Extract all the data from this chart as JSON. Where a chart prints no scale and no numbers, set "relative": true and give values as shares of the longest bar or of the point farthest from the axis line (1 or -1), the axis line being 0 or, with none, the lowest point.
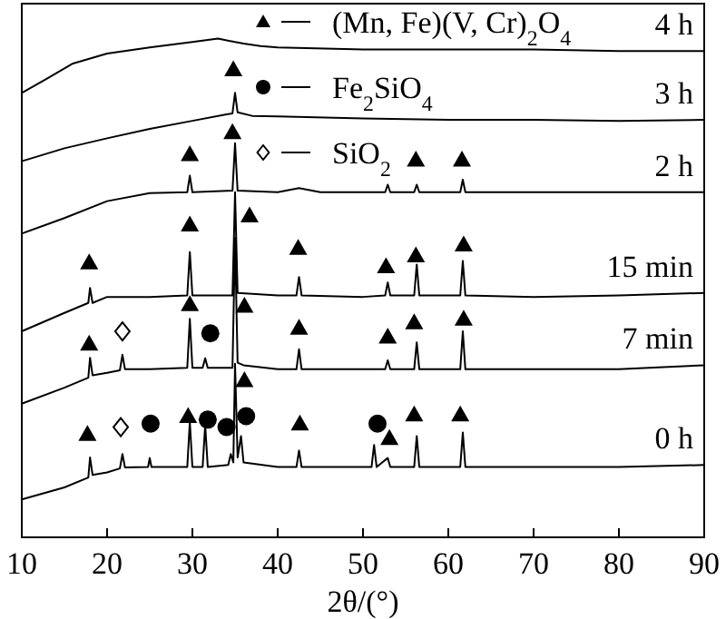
{
  "chart_data": {
    "type": "line",
    "relative": true,
    "xlabel": "2θ/(°)",
    "xlim": [
      10,
      90
    ],
    "xticks": [
      10,
      20,
      30,
      40,
      50,
      60,
      70,
      80,
      90
    ],
    "grid": false,
    "legend": "top",
    "line_style": "solid",
    "series": [
      {
        "name": "4 h",
        "color": "#000000",
        "x": [
          10,
          13,
          16,
          20,
          25,
          30,
          33,
          35,
          36,
          38,
          40,
          50,
          60,
          70,
          80,
          90
        ],
        "values": [
          0.891,
          0.92,
          0.95,
          0.97,
          0.982,
          0.993,
          1.0,
          0.993,
          0.99,
          0.985,
          0.982,
          0.978,
          0.978,
          0.978,
          0.975,
          0.975
        ]
      },
      {
        "name": "3 h",
        "color": "#000000",
        "x": [
          10,
          15,
          20,
          25,
          30,
          34,
          34.7,
          35,
          35.3,
          37,
          40,
          50,
          60,
          70,
          80,
          90
        ],
        "values": [
          0.754,
          0.78,
          0.8,
          0.819,
          0.835,
          0.848,
          0.85,
          0.891,
          0.852,
          0.845,
          0.844,
          0.84,
          0.837,
          0.837,
          0.835,
          0.837
        ]
      },
      {
        "name": "2 h",
        "color": "#000000",
        "x": [
          10,
          15,
          20,
          25,
          29.4,
          29.7,
          30,
          34.7,
          35,
          35.3,
          40,
          42.5,
          45,
          52.6,
          52.9,
          53.2,
          56,
          56.3,
          56.6,
          61.4,
          61.7,
          62,
          70,
          80,
          90
        ],
        "values": [
          0.609,
          0.64,
          0.674,
          0.69,
          0.692,
          0.725,
          0.692,
          0.695,
          0.79,
          0.695,
          0.692,
          0.7,
          0.692,
          0.692,
          0.707,
          0.692,
          0.692,
          0.707,
          0.692,
          0.692,
          0.717,
          0.692,
          0.692,
          0.692,
          0.692
        ]
      },
      {
        "name": "15 min",
        "color": "#000000",
        "x": [
          10,
          15,
          17.8,
          18,
          18.3,
          20,
          25,
          29.4,
          29.7,
          30,
          34.7,
          35,
          35.3,
          40,
          42.2,
          42.5,
          42.8,
          50,
          52.6,
          52.9,
          53.2,
          56,
          56.3,
          56.6,
          61.4,
          61.7,
          62,
          70,
          80,
          90
        ],
        "values": [
          0.413,
          0.45,
          0.47,
          0.5,
          0.47,
          0.482,
          0.482,
          0.485,
          0.572,
          0.485,
          0.485,
          0.692,
          0.49,
          0.485,
          0.485,
          0.522,
          0.485,
          0.482,
          0.485,
          0.511,
          0.485,
          0.485,
          0.547,
          0.485,
          0.485,
          0.554,
          0.485,
          0.482,
          0.485,
          0.49
        ]
      },
      {
        "name": "7 min",
        "color": "#000000",
        "x": [
          10,
          15,
          17.8,
          18,
          18.3,
          20,
          21.5,
          21.8,
          22.1,
          25,
          29.4,
          29.7,
          30,
          31.2,
          31.5,
          31.8,
          34.7,
          35,
          35.3,
          36,
          40,
          42.2,
          42.5,
          42.8,
          50,
          52.6,
          52.9,
          53.2,
          56,
          56.3,
          56.6,
          61.4,
          61.7,
          62,
          70,
          80,
          90
        ],
        "values": [
          0.268,
          0.3,
          0.32,
          0.36,
          0.325,
          0.33,
          0.335,
          0.366,
          0.337,
          0.337,
          0.34,
          0.438,
          0.34,
          0.34,
          0.359,
          0.34,
          0.34,
          0.6,
          0.35,
          0.345,
          0.337,
          0.337,
          0.377,
          0.337,
          0.337,
          0.337,
          0.355,
          0.337,
          0.337,
          0.391,
          0.337,
          0.337,
          0.413,
          0.337,
          0.337,
          0.337,
          0.345
        ]
      },
      {
        "name": "0 h",
        "color": "#000000",
        "x": [
          10,
          15,
          17.8,
          18,
          18.3,
          20,
          21.5,
          21.8,
          22.1,
          24.8,
          25,
          25.2,
          29.4,
          29.7,
          30,
          31.2,
          31.5,
          31.8,
          34.2,
          34.5,
          34.8,
          35,
          35.3,
          35.7,
          36,
          40,
          42.2,
          42.5,
          42.8,
          51,
          51.3,
          51.6,
          52.9,
          53.2,
          56,
          56.3,
          56.6,
          61.4,
          61.7,
          62,
          70,
          80,
          90
        ],
        "values": [
          0.076,
          0.1,
          0.12,
          0.16,
          0.125,
          0.13,
          0.138,
          0.167,
          0.14,
          0.141,
          0.159,
          0.141,
          0.141,
          0.232,
          0.141,
          0.141,
          0.225,
          0.141,
          0.145,
          0.167,
          0.15,
          0.348,
          0.16,
          0.203,
          0.15,
          0.141,
          0.141,
          0.174,
          0.141,
          0.141,
          0.185,
          0.141,
          0.159,
          0.141,
          0.141,
          0.203,
          0.141,
          0.141,
          0.21,
          0.141,
          0.141,
          0.141,
          0.145
        ]
      },
      {
        "type": "scatter",
        "marker": "triangle",
        "name": "(Mn, Fe)(V, Cr)$_{2}$O$_{4}$",
        "color": "#000000",
        "x": [
          34.8,
          29.7,
          34.7,
          56.2,
          61.6,
          29.7,
          36.7,
          17.9,
          42.4,
          52.7,
          56.2,
          61.8,
          29.7,
          36.1,
          17.9,
          42.5,
          52.9,
          56.0,
          61.8,
          17.7,
          29.5,
          36.1,
          42.6,
          53.1,
          56.0,
          61.4
        ],
        "values": [
          0.938,
          0.768,
          0.812,
          0.757,
          0.757,
          0.627,
          0.645,
          0.551,
          0.58,
          0.543,
          0.565,
          0.587,
          0.467,
          0.464,
          0.388,
          0.42,
          0.402,
          0.431,
          0.438,
          0.207,
          0.243,
          0.315,
          0.228,
          0.199,
          0.246,
          0.246
        ]
      },
      {
        "type": "scatter",
        "marker": "circle",
        "name": "Fe$_{2}$SiO$_{4}$",
        "color": "#000000",
        "x": [
          32.1,
          25.1,
          31.8,
          34.0,
          36.3,
          51.7
        ],
        "values": [
          0.409,
          0.228,
          0.236,
          0.221,
          0.243,
          0.228
        ]
      },
      {
        "type": "scatter",
        "marker": "diamond",
        "name": "SiO$_{2}$",
        "color": "#000000",
        "x": [
          21.8,
          21.6
        ],
        "values": [
          0.413,
          0.221
        ]
      }
    ]
  }
}
